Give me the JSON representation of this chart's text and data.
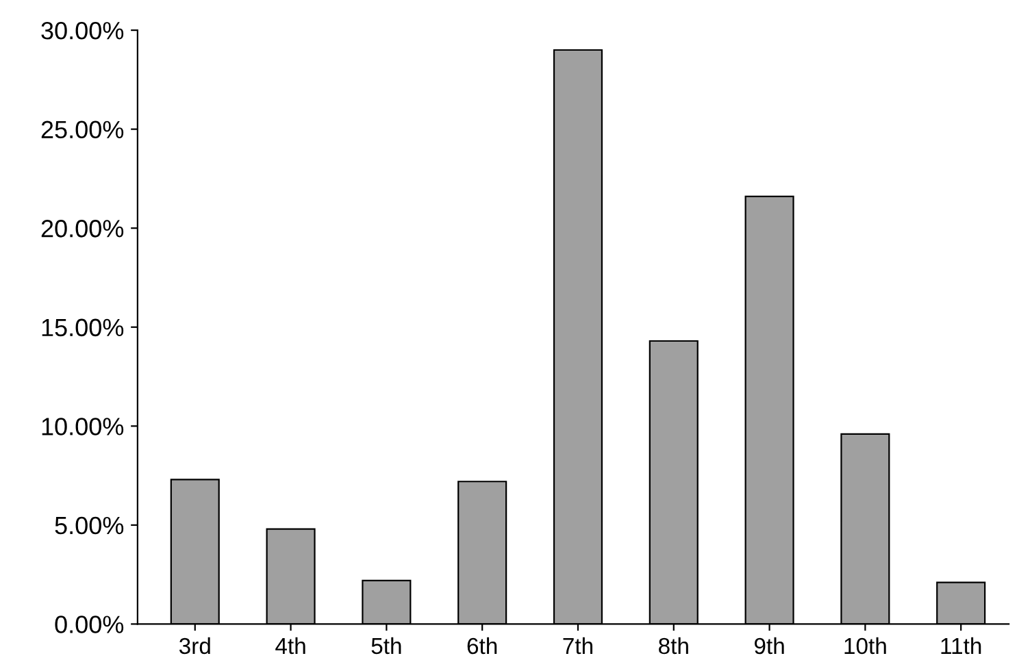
{
  "chart_data": {
    "type": "bar",
    "categories": [
      "3rd",
      "4th",
      "5th",
      "6th",
      "7th",
      "8th",
      "9th",
      "10th",
      "11th"
    ],
    "values": [
      7.3,
      4.8,
      2.2,
      7.2,
      29.0,
      14.3,
      21.6,
      9.6,
      2.1
    ],
    "color": "#a0a0a0",
    "ylim": [
      0,
      30
    ],
    "yticks": [
      {
        "value": 0,
        "label": "0.00%"
      },
      {
        "value": 5,
        "label": "5.00%"
      },
      {
        "value": 10,
        "label": "10.00%"
      },
      {
        "value": 15,
        "label": "15.00%"
      },
      {
        "value": 20,
        "label": "20.00%"
      },
      {
        "value": 25,
        "label": "25.00%"
      },
      {
        "value": 30,
        "label": "30.00%"
      }
    ],
    "grid": false,
    "legend": false
  }
}
